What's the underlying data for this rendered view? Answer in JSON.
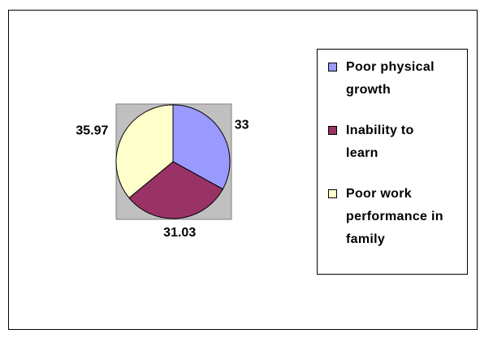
{
  "chart_data": {
    "type": "pie",
    "categories": [
      "Poor physical growth",
      "Inability to learn",
      "Poor work performance in family"
    ],
    "values": [
      33,
      31.03,
      35.97
    ],
    "colors": [
      "#9999ff",
      "#993366",
      "#ffffcc"
    ],
    "legend": "right"
  }
}
